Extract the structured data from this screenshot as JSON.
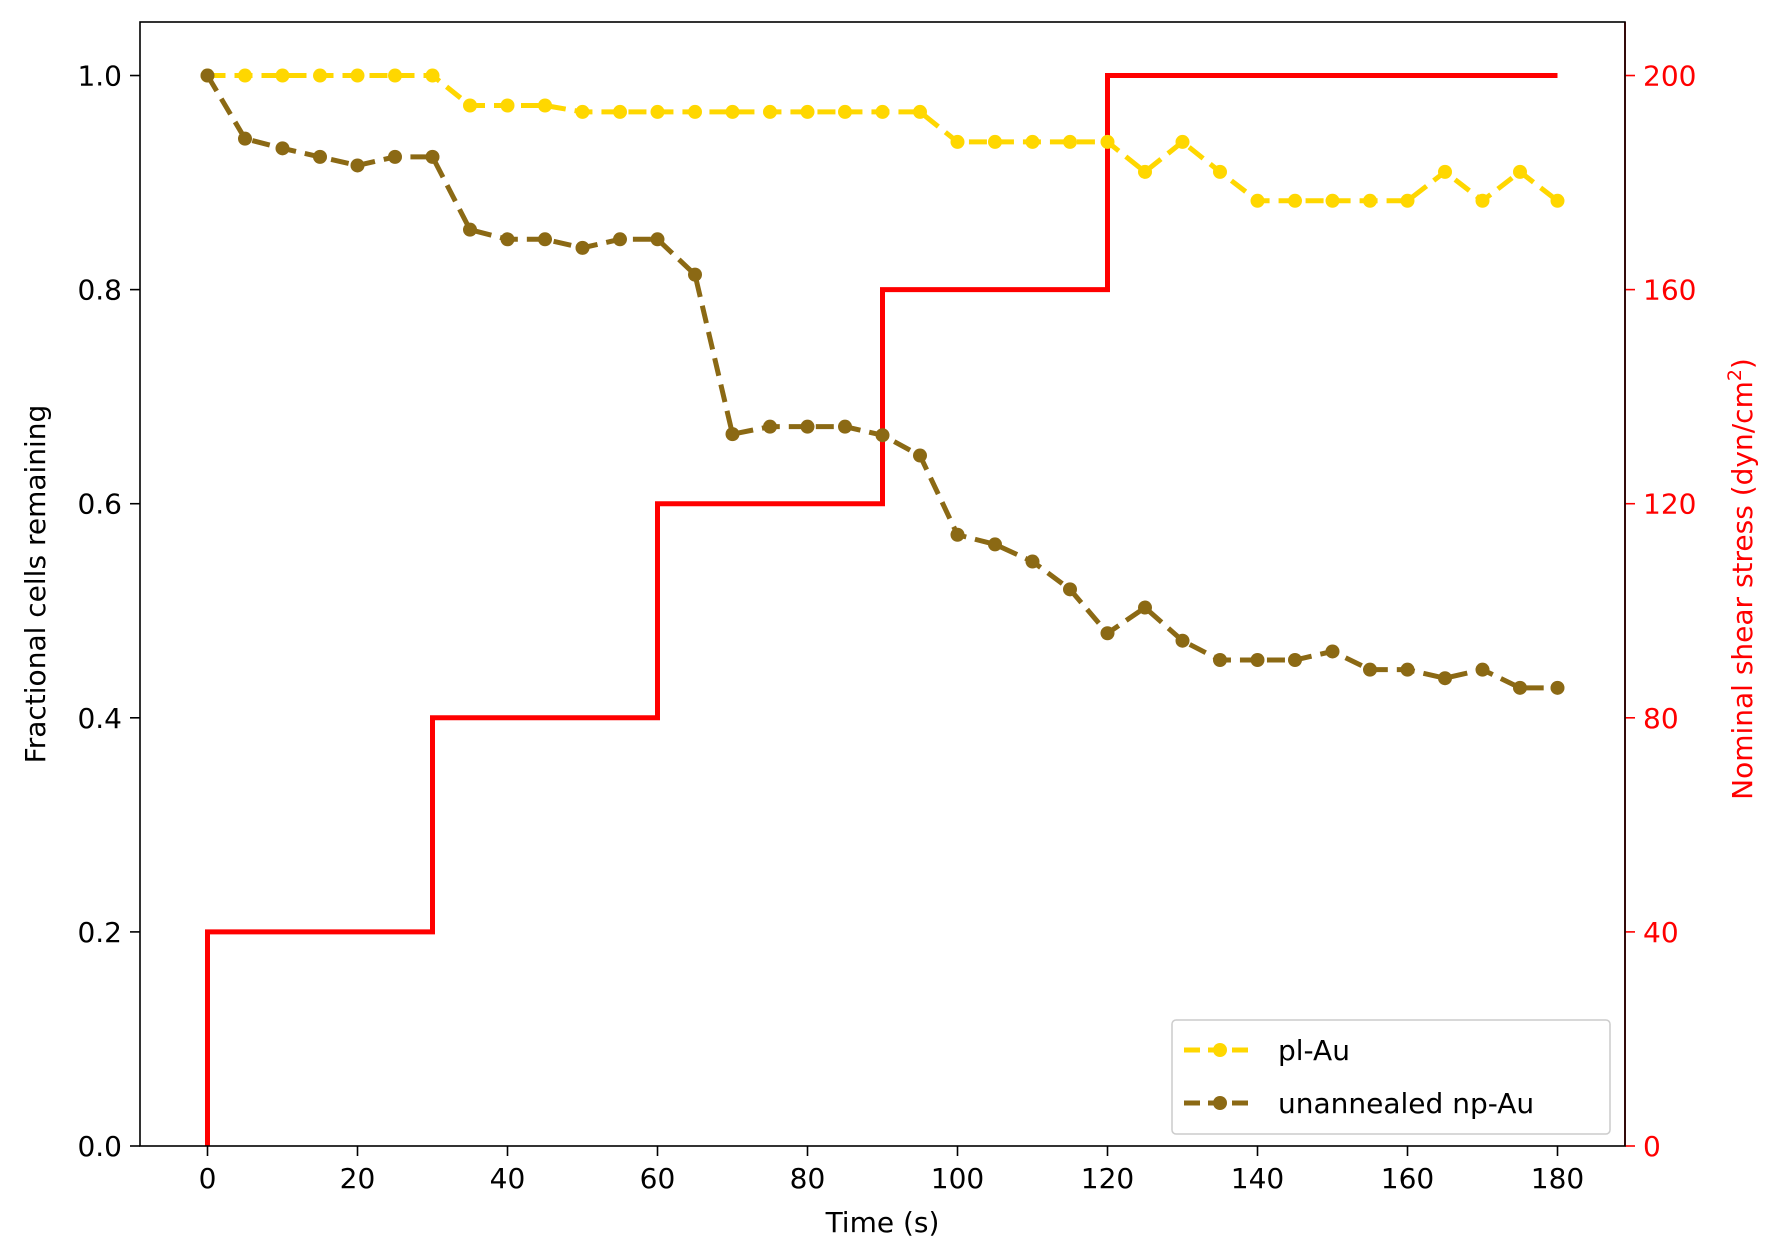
{
  "chart_data": {
    "type": "line",
    "title": "",
    "xlabel": "Time (s)",
    "ylabel": "Fractional cells remaining",
    "y2label": "Nominal shear stress (dyn/cm",
    "y2label_sup": "2",
    "y2label_close": ")",
    "xlim": [
      -9,
      189
    ],
    "ylim": [
      0,
      1.05
    ],
    "y2lim": [
      0,
      210
    ],
    "xticks": [
      0,
      20,
      40,
      60,
      80,
      100,
      120,
      140,
      160,
      180
    ],
    "yticks": [
      "0.0",
      "0.2",
      "0.4",
      "0.6",
      "0.8",
      "1.0"
    ],
    "y2ticks": [
      0,
      40,
      80,
      120,
      160,
      200
    ],
    "grid": false,
    "legend_position": "lower-right",
    "colors": {
      "pl_au": "#FFD700",
      "np_au": "#8B6914",
      "stress": "#FF0000",
      "axis": "#000000",
      "y2axis": "#FF0000"
    },
    "x": [
      0,
      5,
      10,
      15,
      20,
      25,
      30,
      35,
      40,
      45,
      50,
      55,
      60,
      65,
      70,
      75,
      80,
      85,
      90,
      95,
      100,
      105,
      110,
      115,
      120,
      125,
      130,
      135,
      140,
      145,
      150,
      155,
      160,
      165,
      170,
      175,
      180
    ],
    "series": [
      {
        "name": "pl-Au",
        "style": "dashed-with-markers",
        "values": [
          1.0,
          1.0,
          1.0,
          1.0,
          1.0,
          1.0,
          1.0,
          0.972,
          0.972,
          0.972,
          0.966,
          0.966,
          0.966,
          0.966,
          0.966,
          0.966,
          0.966,
          0.966,
          0.966,
          0.966,
          0.938,
          0.938,
          0.938,
          0.938,
          0.938,
          0.91,
          0.938,
          0.91,
          0.883,
          0.883,
          0.883,
          0.883,
          0.883,
          0.91,
          0.883,
          0.91,
          0.883
        ]
      },
      {
        "name": "unannealed np-Au",
        "style": "dashed-with-markers",
        "values": [
          1.0,
          0.941,
          0.932,
          0.924,
          0.916,
          0.924,
          0.924,
          0.856,
          0.847,
          0.847,
          0.839,
          0.847,
          0.847,
          0.814,
          0.665,
          0.672,
          0.672,
          0.672,
          0.664,
          0.645,
          0.571,
          0.562,
          0.546,
          0.52,
          0.479,
          0.503,
          0.472,
          0.454,
          0.454,
          0.454,
          0.462,
          0.445,
          0.445,
          0.437,
          0.445,
          0.428,
          0.428
        ]
      }
    ],
    "stress_series": {
      "axis": "right",
      "style": "solid-step",
      "x": [
        0,
        0,
        30,
        30,
        60,
        60,
        90,
        90,
        120,
        120,
        180
      ],
      "values": [
        0,
        40,
        40,
        80,
        80,
        120,
        120,
        160,
        160,
        200,
        200
      ]
    }
  }
}
